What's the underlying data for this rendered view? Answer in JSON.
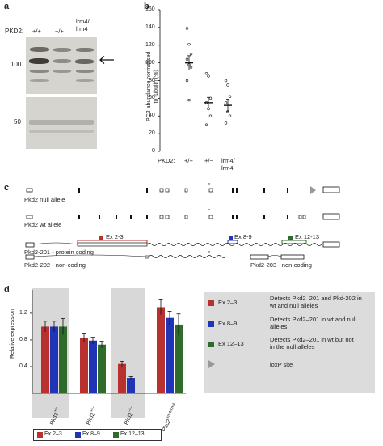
{
  "panels": {
    "a": "a",
    "b": "b",
    "c": "c",
    "d": "d"
  },
  "panel_a": {
    "genotype_label": "PKD2:",
    "lanes": [
      "+/+",
      "−/+",
      "lrm4/\nlrm4"
    ],
    "markers": [
      "100",
      "50"
    ]
  },
  "panel_b": {
    "ylabel": "PC2 abundance normalised\nto tubulin (%)",
    "yticks": [
      "0",
      "20",
      "40",
      "60",
      "80",
      "100",
      "120",
      "140",
      "160"
    ],
    "genotype_label": "PKD2:",
    "xticks": [
      "+/+",
      "+/−",
      "lrm4/\nlrm4"
    ]
  },
  "panel_c": {
    "null_allele": "Pkd2 null allele",
    "wt_allele": "Pkd2 wt allele",
    "ex23": "Ex 2-3",
    "ex89": "Ex 8-9",
    "ex1213": "Ex 12-13",
    "t201": "Pkd2-201 - protein coding",
    "t202": "Pkd2-202 - non-coding",
    "t203": "Pkd2-203 - non-coding",
    "colors": {
      "ex23": "#b8312f",
      "ex89": "#1f35b5",
      "ex1213": "#2f6b2a"
    }
  },
  "panel_d": {
    "ylabel": "Relative expression",
    "yticks": [
      "0.4",
      "0.8",
      "1.2"
    ],
    "groups": [
      "Pkd2+/+",
      "Pkd2+/−",
      "Pkd2−/−",
      "Pkd2lrm4/lrm4"
    ],
    "legend": [
      "Ex 2–3",
      "Ex 8–9",
      "Ex 12–13"
    ],
    "key": [
      {
        "label": "Ex 2–3",
        "desc": "Detects Pkd2–201 and Pkd-202 in\nwt and null alleles"
      },
      {
        "label": "Ex 8–9",
        "desc": "Detects Pkd2–201 in wt and null\nalleles"
      },
      {
        "label": "Ex 12–13",
        "desc": "Detects Pkd2–201 in wt but not\nin the null alleles"
      },
      {
        "label": "",
        "desc": "loxP site"
      }
    ]
  },
  "chart_data": [
    {
      "type": "scatter",
      "ylabel": "PC2 abundance normalised to tubulin (%)",
      "categories": [
        "+/+",
        "+/−",
        "lrm4/lrm4"
      ],
      "ylim": [
        0,
        160
      ],
      "points": {
        "+/+": [
          139,
          121,
          110,
          104,
          98,
          95,
          80,
          58
        ],
        "+/−": [
          88,
          85,
          60,
          55,
          48,
          40,
          30
        ],
        "lrm4/lrm4": [
          80,
          75,
          62,
          55,
          45,
          40,
          32
        ]
      },
      "means": [
        100,
        55,
        52
      ],
      "sem": [
        8,
        6,
        7
      ]
    },
    {
      "type": "bar",
      "ylabel": "Relative expression",
      "categories": [
        "Pkd2+/+",
        "Pkd2+/−",
        "Pkd2−/−",
        "Pkd2lrm4/lrm4"
      ],
      "ylim": [
        0,
        1.55
      ],
      "series": [
        {
          "name": "Ex 2–3",
          "values": [
            1.0,
            0.83,
            0.44,
            1.29
          ],
          "err": [
            0.08,
            0.06,
            0.04,
            0.11
          ],
          "color": "#b8312f"
        },
        {
          "name": "Ex 8–9",
          "values": [
            1.0,
            0.79,
            0.23,
            1.13
          ],
          "err": [
            0.08,
            0.05,
            0.02,
            0.1
          ],
          "color": "#1f35b5"
        },
        {
          "name": "Ex 12–13",
          "values": [
            1.0,
            0.73,
            0.0,
            1.03
          ],
          "err": [
            0.12,
            0.05,
            0.0,
            0.16
          ],
          "color": "#2f6b2a"
        }
      ]
    }
  ]
}
